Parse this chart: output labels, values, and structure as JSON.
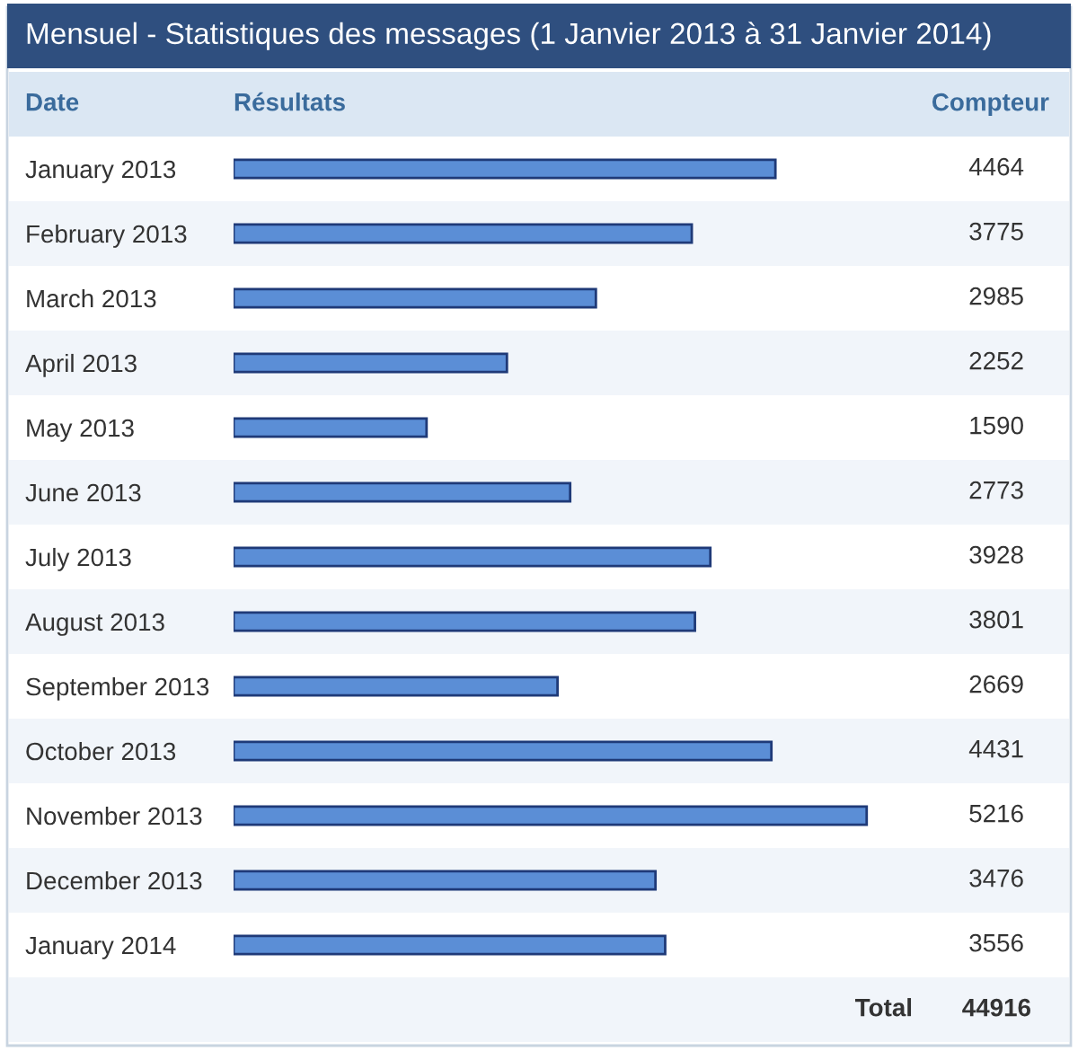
{
  "chart_data": {
    "type": "bar",
    "orientation": "horizontal",
    "title": "Mensuel - Statistiques des messages (1 Janvier 2013 à 31 Janvier 2014)",
    "ylabel": "Date",
    "xlabel": "Résultats",
    "y2label": "Compteur",
    "categories": [
      "January 2013",
      "February 2013",
      "March 2013",
      "April 2013",
      "May 2013",
      "June 2013",
      "July 2013",
      "August 2013",
      "September 2013",
      "October 2013",
      "November 2013",
      "December 2013",
      "January 2014"
    ],
    "values": [
      4464,
      3775,
      2985,
      2252,
      1590,
      2773,
      3928,
      3801,
      2669,
      4431,
      5216,
      3476,
      3556
    ],
    "color": "#5b8ed6",
    "data_labels": true,
    "grid": false,
    "legend": false,
    "annotations": [
      "Total",
      "44916"
    ]
  }
}
